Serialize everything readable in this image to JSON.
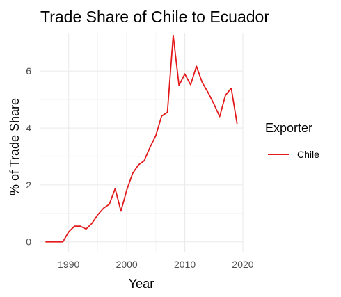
{
  "chart_data": {
    "type": "line",
    "title": "Trade Share of Chile to Ecuador",
    "xlabel": "Year",
    "ylabel": "% of Trade Share",
    "xlim": [
      1985,
      2020
    ],
    "ylim": [
      -0.35,
      7.35
    ],
    "x_ticks": [
      1990,
      2000,
      2010,
      2020
    ],
    "y_ticks": [
      0,
      2,
      4,
      6
    ],
    "grid": true,
    "legend": {
      "title": "Exporter",
      "position": "right"
    },
    "series": [
      {
        "name": "Chile",
        "color": "#e31a1c",
        "points": [
          [
            1986,
            0.0
          ],
          [
            1987,
            0.0
          ],
          [
            1988,
            0.0
          ],
          [
            1989,
            0.0
          ],
          [
            1990,
            0.35
          ],
          [
            1991,
            0.55
          ],
          [
            1992,
            0.55
          ],
          [
            1993,
            0.45
          ],
          [
            1994,
            0.65
          ],
          [
            1995,
            0.95
          ],
          [
            1996,
            1.18
          ],
          [
            1997,
            1.32
          ],
          [
            1998,
            1.87
          ],
          [
            1999,
            1.08
          ],
          [
            2000,
            1.82
          ],
          [
            2001,
            2.4
          ],
          [
            2002,
            2.7
          ],
          [
            2003,
            2.85
          ],
          [
            2004,
            3.32
          ],
          [
            2005,
            3.73
          ],
          [
            2006,
            4.42
          ],
          [
            2007,
            4.55
          ],
          [
            2008,
            7.25
          ],
          [
            2009,
            5.5
          ],
          [
            2010,
            5.9
          ],
          [
            2011,
            5.52
          ],
          [
            2012,
            6.17
          ],
          [
            2013,
            5.6
          ],
          [
            2014,
            5.25
          ],
          [
            2015,
            4.85
          ],
          [
            2016,
            4.4
          ],
          [
            2017,
            5.15
          ],
          [
            2018,
            5.4
          ],
          [
            2019,
            4.15
          ]
        ]
      }
    ]
  }
}
